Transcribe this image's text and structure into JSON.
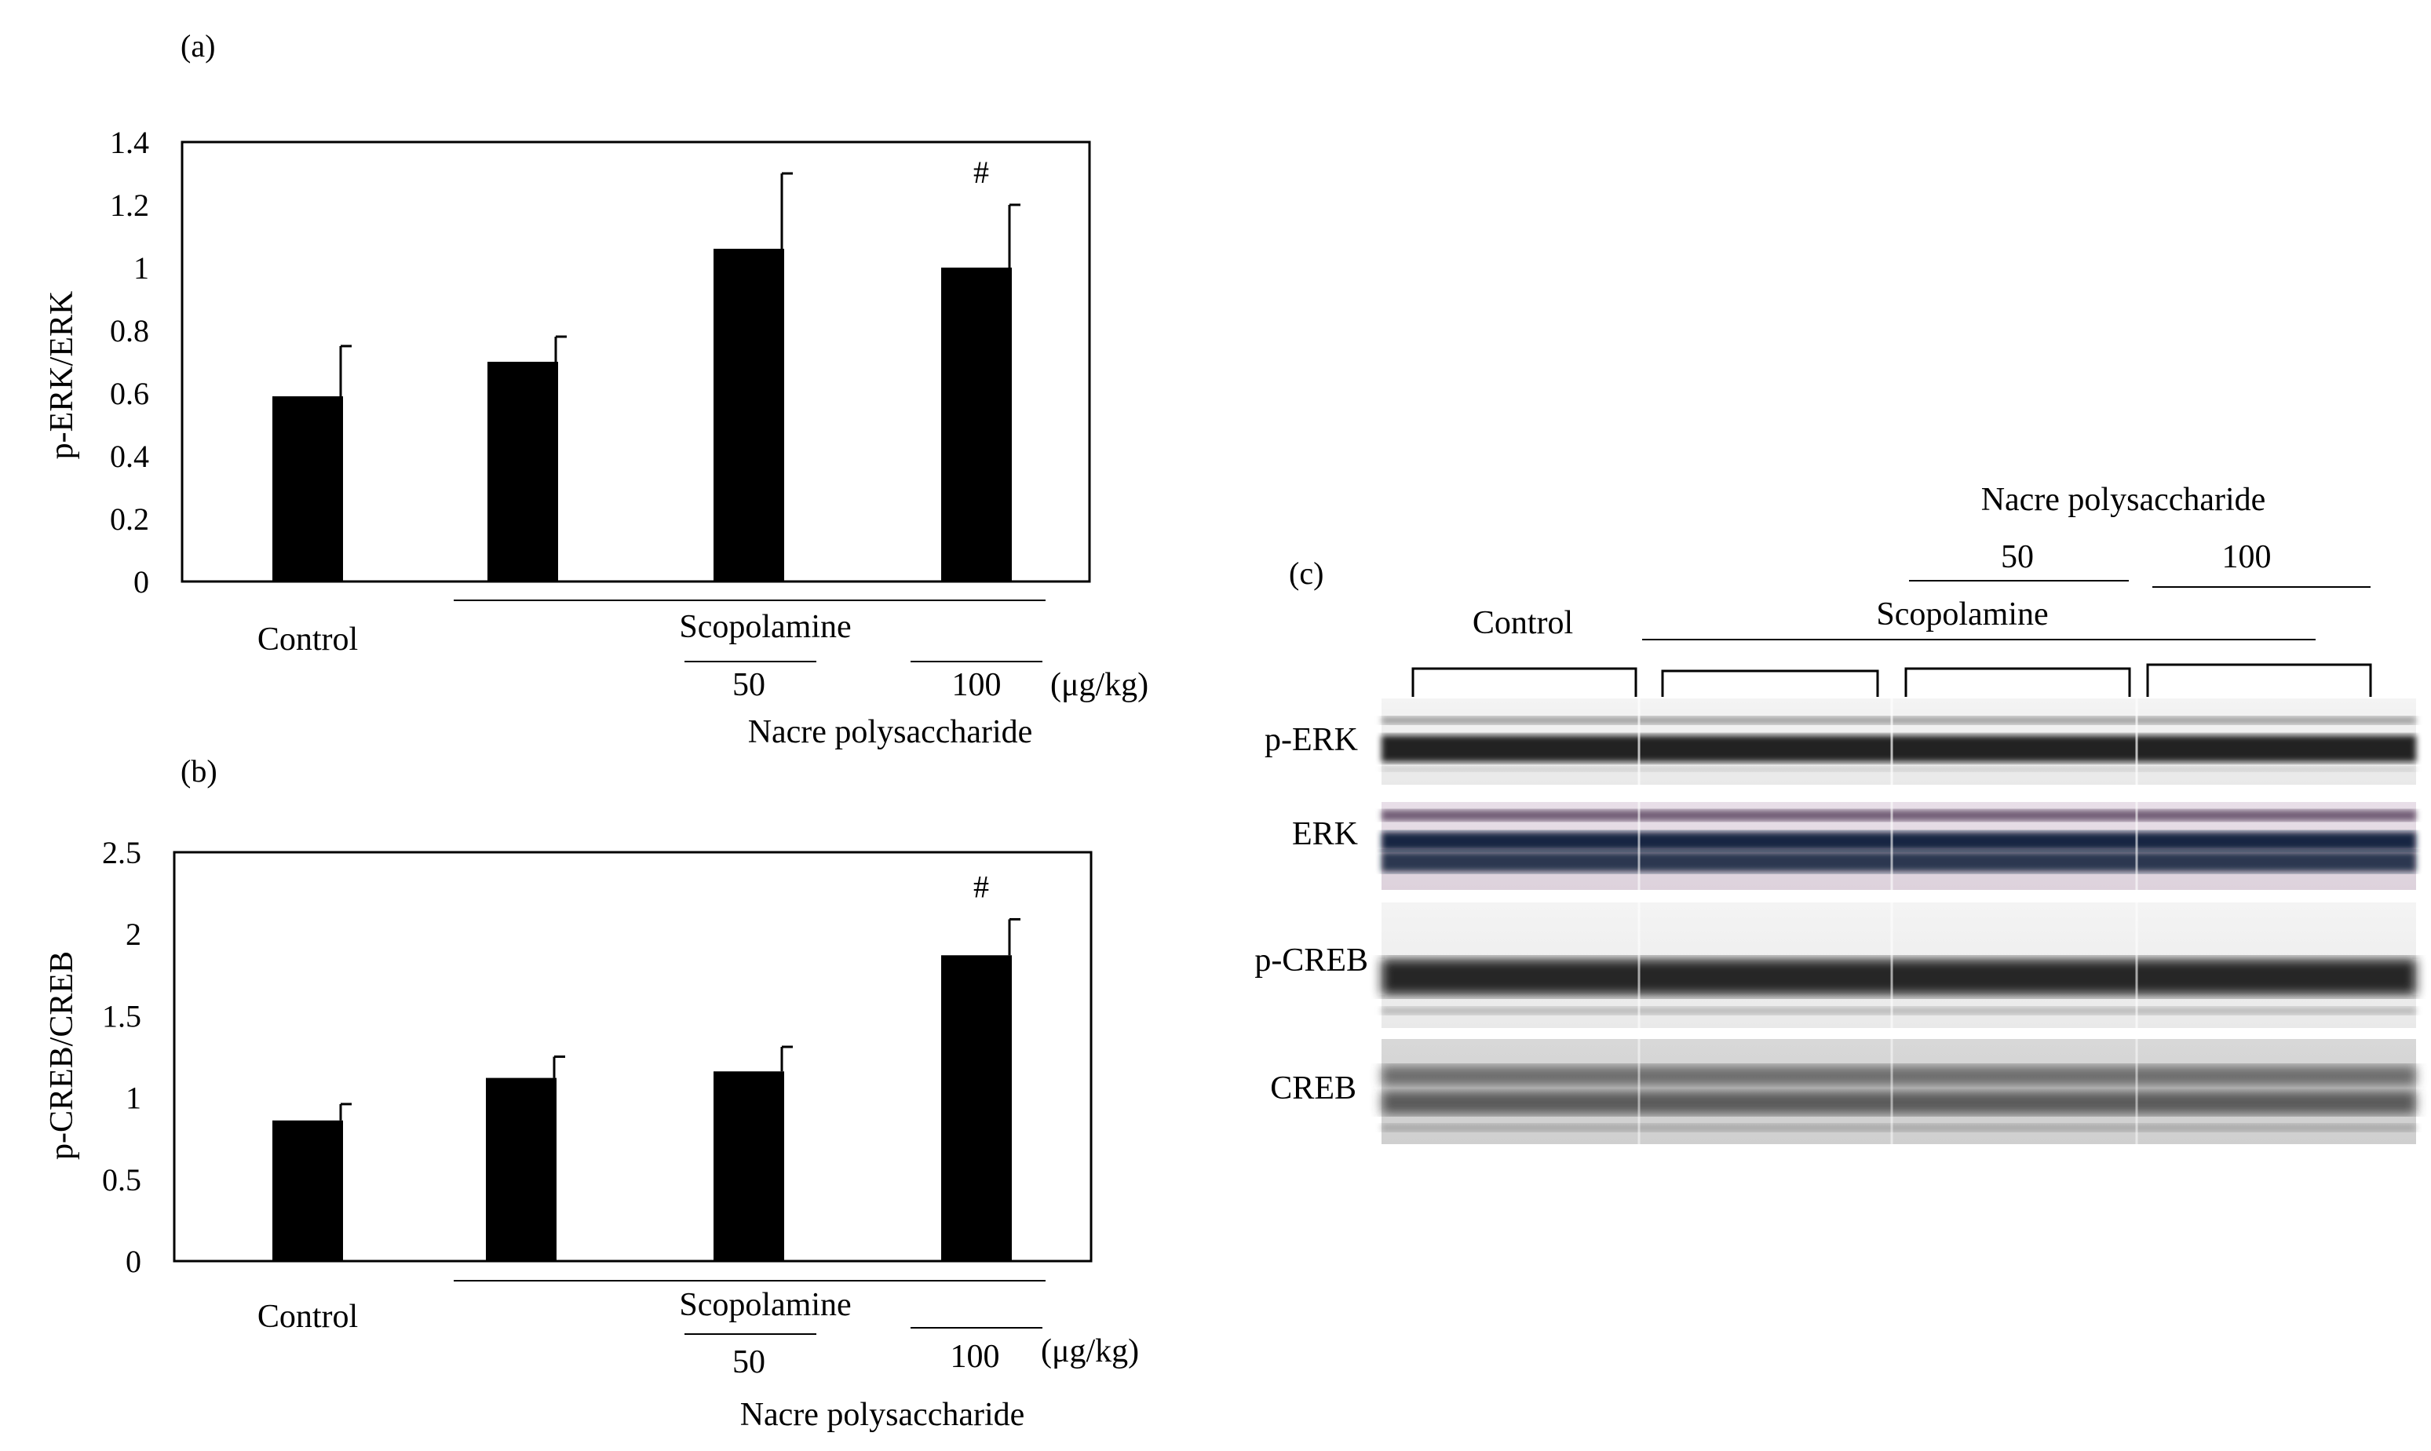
{
  "panel_labels": {
    "a": "(a)",
    "b": "(b)",
    "c": "(c)"
  },
  "chart_data": [
    {
      "type": "bar",
      "panel": "(a)",
      "ylabel": "p-ERK/ERK",
      "ylim": [
        0,
        1.4
      ],
      "yticks": [
        "0",
        "0.2",
        "0.4",
        "0.6",
        "0.8",
        "1",
        "1.2",
        "1.4"
      ],
      "categories": [
        "Control",
        "Scopolamine",
        "50",
        "100"
      ],
      "values": [
        0.59,
        0.7,
        1.06,
        1.0
      ],
      "errors": [
        0.16,
        0.08,
        0.24,
        0.2
      ],
      "annotations": [
        "",
        "",
        "",
        "#"
      ],
      "color": "#000000",
      "group_labels": {
        "control": "Control",
        "treatment": "Scopolamine",
        "dose_50": "50",
        "dose_100": "100",
        "unit": "(μg/kg)",
        "compound": "Nacre polysaccharide"
      }
    },
    {
      "type": "bar",
      "panel": "(b)",
      "ylabel": "p-CREB/CREB",
      "ylim": [
        0,
        2.5
      ],
      "yticks": [
        "0",
        "0.5",
        "1",
        "1.5",
        "2",
        "2.5"
      ],
      "categories": [
        "Control",
        "Scopolamine",
        "50",
        "100"
      ],
      "values": [
        0.86,
        1.12,
        1.16,
        1.87
      ],
      "errors": [
        0.1,
        0.13,
        0.15,
        0.22
      ],
      "annotations": [
        "",
        "",
        "",
        "#"
      ],
      "color": "#000000",
      "group_labels": {
        "control": "Control",
        "treatment": "Scopolamine",
        "dose_50": "50",
        "dose_100": "100",
        "unit": "(μg/kg)",
        "compound": "Nacre polysaccharide"
      }
    }
  ],
  "blot": {
    "compound": "Nacre polysaccharide",
    "dose_50": "50",
    "dose_100": "100",
    "control": "Control",
    "treatment": "Scopolamine",
    "rows": [
      "p-ERK",
      "ERK",
      "p-CREB",
      "CREB"
    ]
  }
}
